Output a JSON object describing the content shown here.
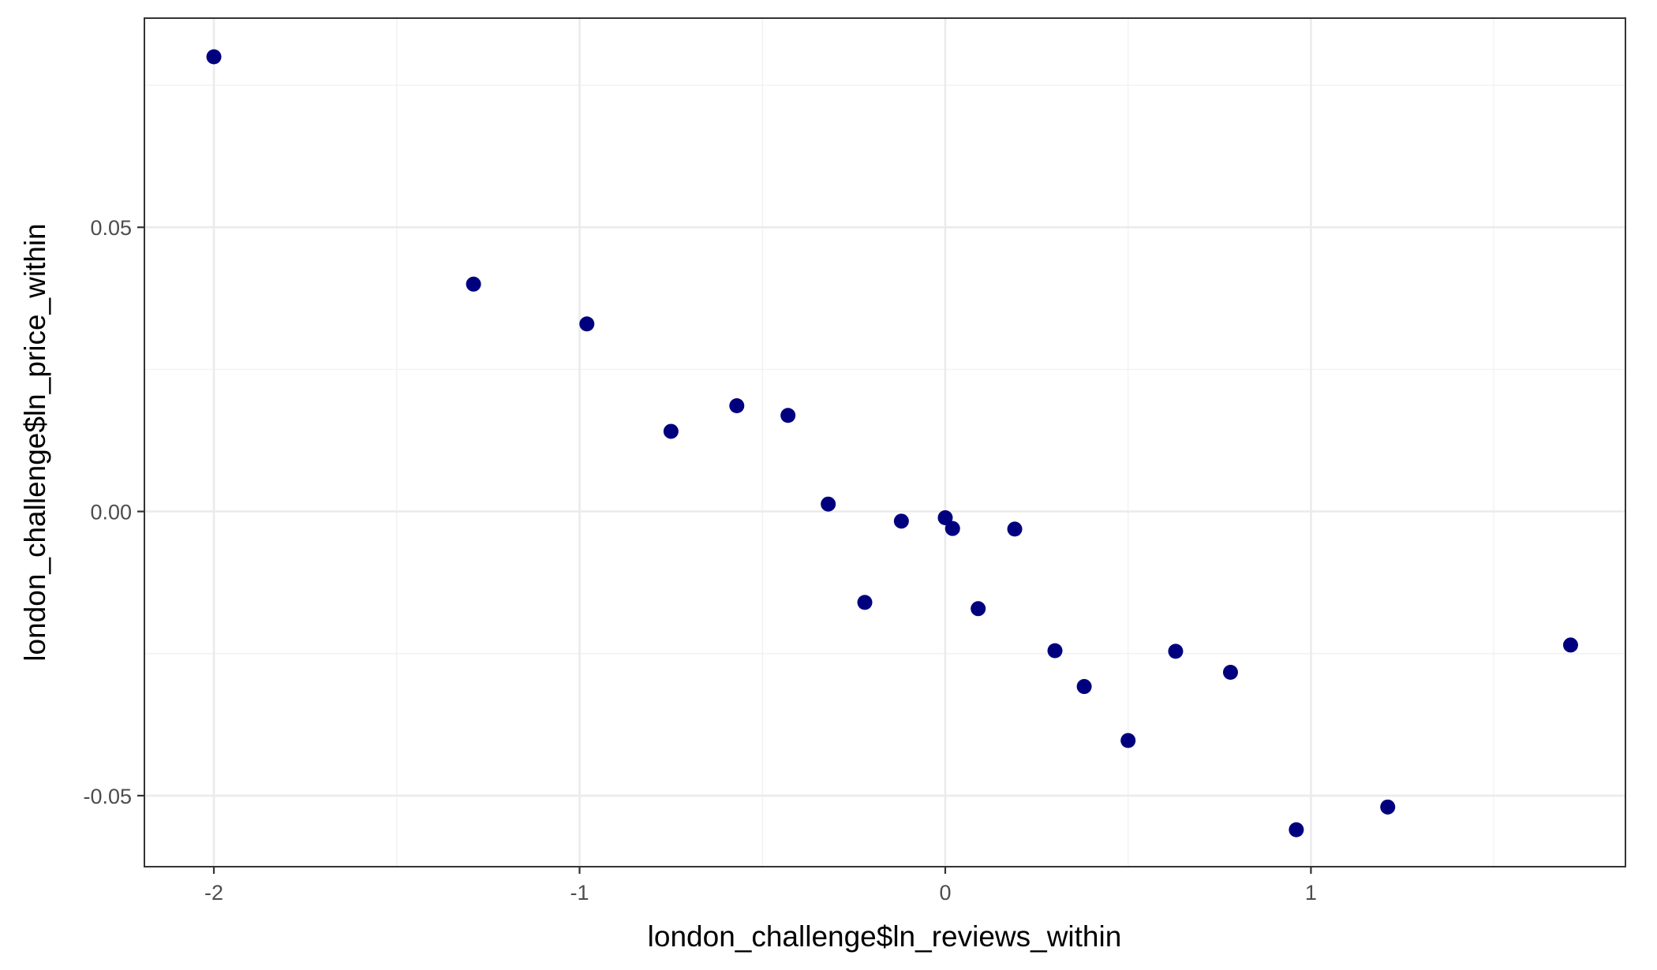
{
  "chart_data": {
    "type": "scatter",
    "title": "",
    "xlabel": "london_challenge$ln_reviews_within",
    "ylabel": "london_challenge$ln_price_within",
    "xlim": [
      -2.19,
      1.86
    ],
    "ylim": [
      -0.0625,
      0.0868
    ],
    "x_ticks": [
      -2,
      -1,
      0,
      1
    ],
    "x_tick_labels": [
      "-2",
      "-1",
      "0",
      "1"
    ],
    "y_ticks": [
      -0.05,
      0.0,
      0.05
    ],
    "y_tick_labels": [
      "-0.05",
      "0.00",
      "0.05"
    ],
    "grid": true,
    "legend": "none",
    "point_color": "#00007f",
    "points": [
      {
        "x": -2.0,
        "y": 0.08
      },
      {
        "x": -1.29,
        "y": 0.04
      },
      {
        "x": -0.98,
        "y": 0.033
      },
      {
        "x": -0.75,
        "y": 0.0141
      },
      {
        "x": -0.57,
        "y": 0.0186
      },
      {
        "x": -0.43,
        "y": 0.0169
      },
      {
        "x": -0.32,
        "y": 0.0013
      },
      {
        "x": -0.22,
        "y": -0.016
      },
      {
        "x": -0.12,
        "y": -0.0017
      },
      {
        "x": 0.0,
        "y": -0.0011
      },
      {
        "x": 0.02,
        "y": -0.003
      },
      {
        "x": 0.09,
        "y": -0.0171
      },
      {
        "x": 0.19,
        "y": -0.0031
      },
      {
        "x": 0.3,
        "y": -0.0245
      },
      {
        "x": 0.38,
        "y": -0.0308
      },
      {
        "x": 0.5,
        "y": -0.0403
      },
      {
        "x": 0.63,
        "y": -0.0246
      },
      {
        "x": 0.78,
        "y": -0.0283
      },
      {
        "x": 0.96,
        "y": -0.056
      },
      {
        "x": 1.21,
        "y": -0.052
      },
      {
        "x": 1.71,
        "y": -0.0235
      }
    ]
  }
}
